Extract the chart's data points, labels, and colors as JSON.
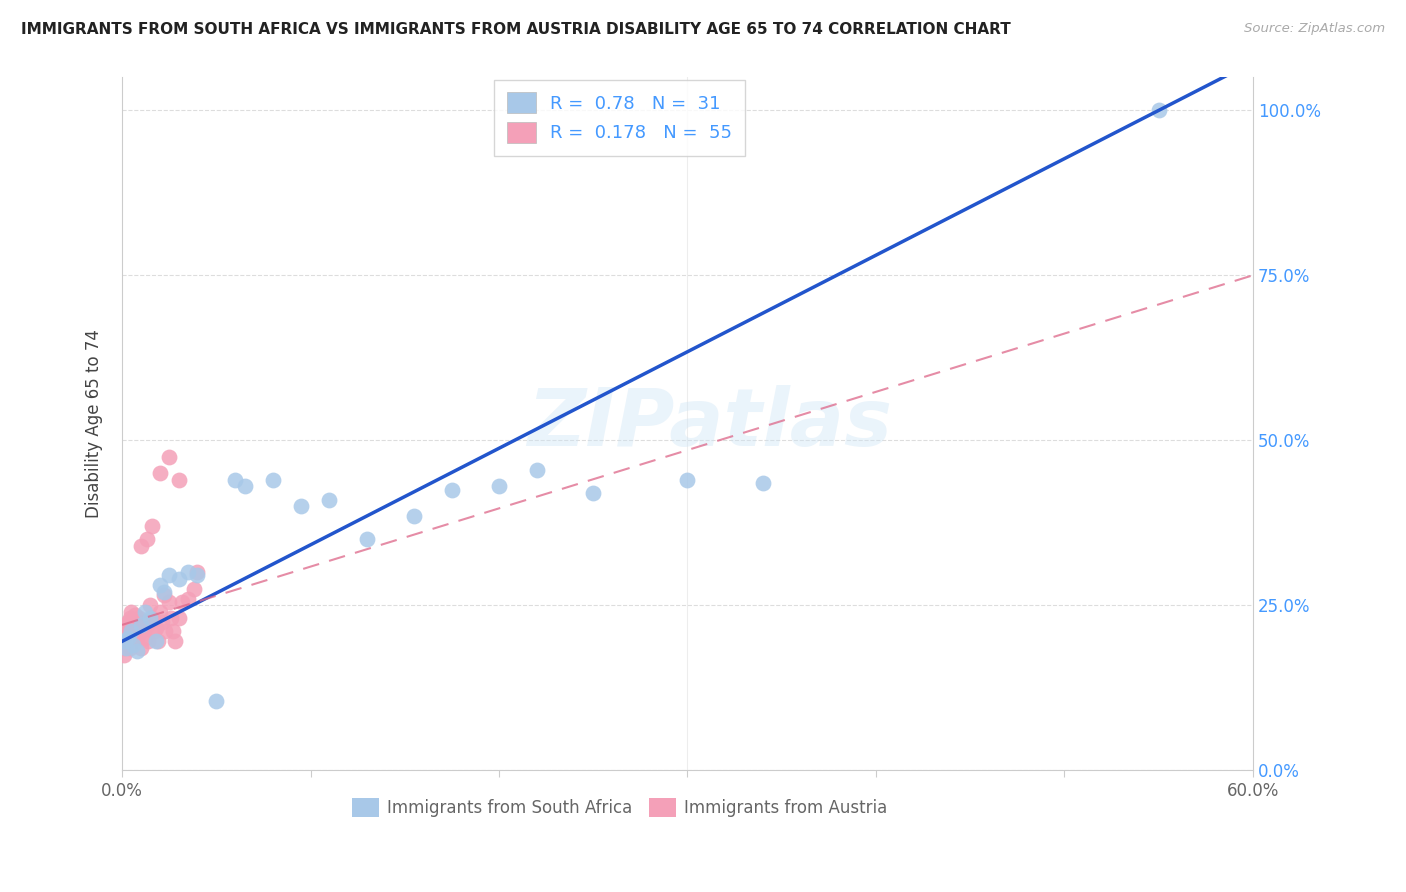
{
  "title": "IMMIGRANTS FROM SOUTH AFRICA VS IMMIGRANTS FROM AUSTRIA DISABILITY AGE 65 TO 74 CORRELATION CHART",
  "source": "Source: ZipAtlas.com",
  "ylabel": "Disability Age 65 to 74",
  "xmin": 0.0,
  "xmax": 0.6,
  "ymin": 0.0,
  "ymax": 1.05,
  "ytick_labels": [
    "0.0%",
    "25.0%",
    "50.0%",
    "75.0%",
    "100.0%"
  ],
  "ytick_vals": [
    0.0,
    0.25,
    0.5,
    0.75,
    1.0
  ],
  "xtick_vals": [
    0.0,
    0.1,
    0.2,
    0.3,
    0.4,
    0.5,
    0.6
  ],
  "south_africa_R": 0.78,
  "south_africa_N": 31,
  "austria_R": 0.178,
  "austria_N": 55,
  "south_africa_color": "#a8c8e8",
  "south_africa_line_color": "#2255cc",
  "austria_color": "#f4a0b8",
  "austria_line_color": "#dd6688",
  "watermark": "ZIPatlas",
  "legend_text_color": "#4499ff",
  "sa_x": [
    0.001,
    0.002,
    0.003,
    0.005,
    0.006,
    0.008,
    0.01,
    0.012,
    0.015,
    0.018,
    0.02,
    0.022,
    0.025,
    0.03,
    0.035,
    0.04,
    0.05,
    0.06,
    0.065,
    0.08,
    0.095,
    0.11,
    0.13,
    0.155,
    0.175,
    0.2,
    0.22,
    0.25,
    0.3,
    0.34,
    0.55
  ],
  "sa_y": [
    0.195,
    0.185,
    0.2,
    0.21,
    0.19,
    0.18,
    0.22,
    0.24,
    0.23,
    0.195,
    0.28,
    0.27,
    0.295,
    0.29,
    0.3,
    0.295,
    0.105,
    0.44,
    0.43,
    0.44,
    0.4,
    0.41,
    0.35,
    0.385,
    0.425,
    0.43,
    0.455,
    0.42,
    0.44,
    0.435,
    1.0
  ],
  "at_x": [
    0.001,
    0.001,
    0.001,
    0.002,
    0.002,
    0.002,
    0.003,
    0.003,
    0.003,
    0.004,
    0.004,
    0.005,
    0.005,
    0.005,
    0.006,
    0.006,
    0.007,
    0.007,
    0.007,
    0.008,
    0.008,
    0.009,
    0.009,
    0.01,
    0.01,
    0.011,
    0.012,
    0.012,
    0.013,
    0.014,
    0.015,
    0.015,
    0.016,
    0.017,
    0.018,
    0.019,
    0.02,
    0.021,
    0.022,
    0.023,
    0.025,
    0.026,
    0.027,
    0.028,
    0.03,
    0.032,
    0.035,
    0.038,
    0.04,
    0.01,
    0.013,
    0.016,
    0.02,
    0.025,
    0.03
  ],
  "at_y": [
    0.2,
    0.185,
    0.175,
    0.22,
    0.195,
    0.21,
    0.215,
    0.225,
    0.205,
    0.185,
    0.23,
    0.22,
    0.2,
    0.24,
    0.21,
    0.225,
    0.215,
    0.195,
    0.235,
    0.2,
    0.22,
    0.215,
    0.23,
    0.185,
    0.21,
    0.225,
    0.2,
    0.215,
    0.22,
    0.195,
    0.225,
    0.25,
    0.23,
    0.21,
    0.215,
    0.195,
    0.24,
    0.225,
    0.265,
    0.21,
    0.255,
    0.23,
    0.21,
    0.195,
    0.23,
    0.255,
    0.26,
    0.275,
    0.3,
    0.34,
    0.35,
    0.37,
    0.45,
    0.475,
    0.44
  ],
  "sa_line_x0": 0.0,
  "sa_line_y0": 0.195,
  "sa_line_x1": 0.55,
  "sa_line_y1": 1.0,
  "at_line_x0": 0.0,
  "at_line_y0": 0.22,
  "at_line_x1": 0.6,
  "at_line_y1": 0.8
}
